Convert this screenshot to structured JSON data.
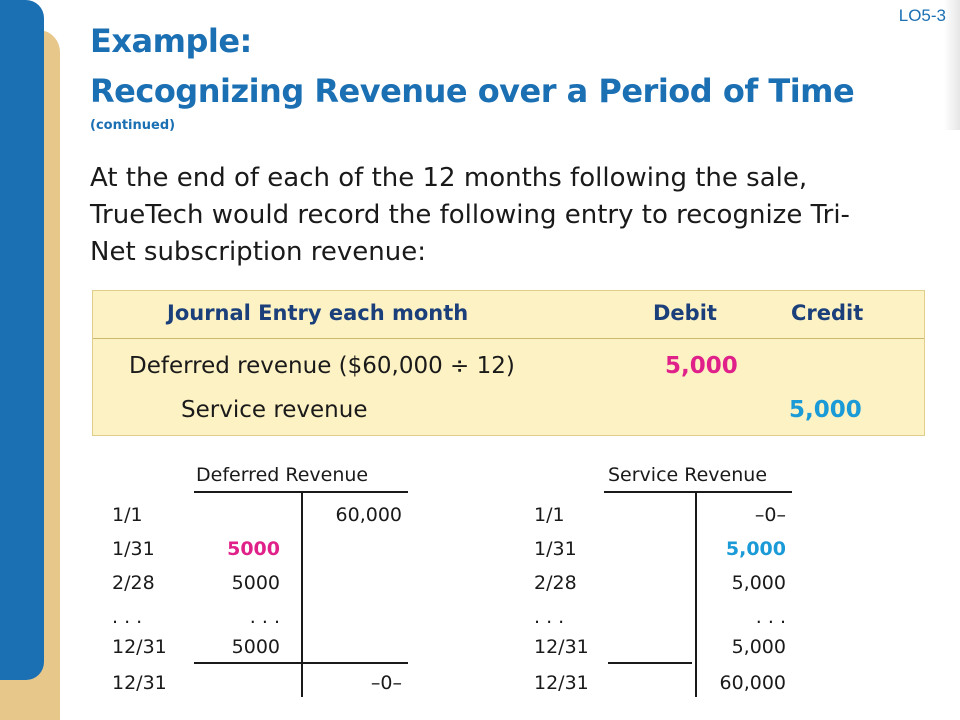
{
  "slide": {
    "lo_tag": "LO5-3",
    "title_line1": "Example:",
    "title_line2": "Recognizing Revenue over a Period of Time",
    "continued": "(continued)",
    "body": "At the end of each of the 12 months following the sale, TrueTech would record the following entry to recognize Tri-Net subscription revenue:"
  },
  "journal": {
    "header_title": "Journal Entry each month",
    "header_debit": "Debit",
    "header_credit": "Credit",
    "debit_account": "Deferred revenue ($60,000 ÷ 12)",
    "debit_amount": "5,000",
    "credit_account": "Service revenue",
    "credit_amount": "5,000"
  },
  "deferred_revenue": {
    "title": "Deferred Revenue",
    "rows": [
      {
        "date": "1/1",
        "debit": "",
        "credit": "60,000"
      },
      {
        "date": "1/31",
        "debit": "5000",
        "credit": ""
      },
      {
        "date": "2/28",
        "debit": "5000",
        "credit": ""
      },
      {
        "date": ". . .",
        "debit": ". . .",
        "credit": ""
      },
      {
        "date": "12/31",
        "debit": "5000",
        "credit": ""
      },
      {
        "date": "12/31",
        "debit": "",
        "credit": "–0–"
      }
    ]
  },
  "service_revenue": {
    "title": "Service Revenue",
    "rows": [
      {
        "date": "1/1",
        "debit": "",
        "credit": "–0–"
      },
      {
        "date": "1/31",
        "debit": "",
        "credit": "5,000"
      },
      {
        "date": "2/28",
        "debit": "",
        "credit": "5,000"
      },
      {
        "date": ". . .",
        "debit": "",
        "credit": ". . ."
      },
      {
        "date": "12/31",
        "debit": "",
        "credit": "5,000"
      },
      {
        "date": "12/31",
        "debit": "",
        "credit": "60,000"
      }
    ]
  },
  "colors": {
    "title_blue": "#1b6fb3",
    "debit_highlight": "#e0218a",
    "credit_highlight": "#1a9ad6",
    "journal_fill": "#fdf2c4"
  }
}
